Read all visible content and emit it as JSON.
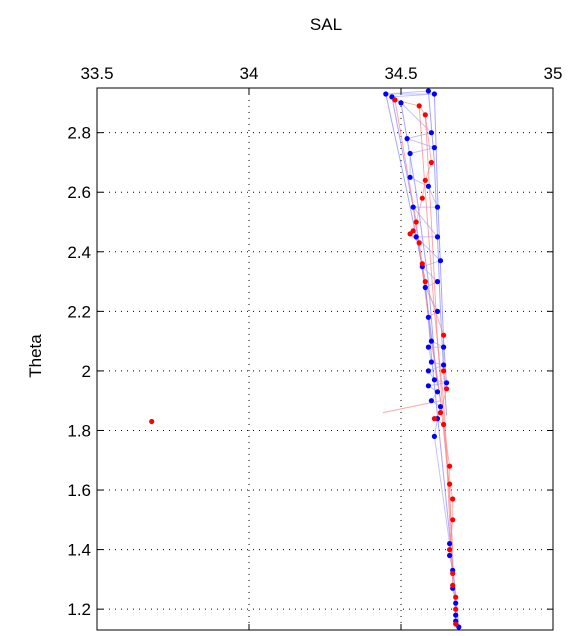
{
  "chart_data": {
    "type": "scatter",
    "title": "",
    "xlabel": "SAL",
    "ylabel": "Theta",
    "xlim": [
      33.5,
      35
    ],
    "ylim": [
      1.13,
      2.95
    ],
    "x_axis_position": "top",
    "xticks": [
      33.5,
      34,
      34.5,
      35
    ],
    "xtick_labels": [
      "33.5",
      "34",
      "34.5",
      "35"
    ],
    "yticks": [
      1.2,
      1.4,
      1.6,
      1.8,
      2.0,
      2.2,
      2.4,
      2.6,
      2.8
    ],
    "ytick_labels": [
      "1.2",
      "1.4",
      "1.6",
      "1.8",
      "2",
      "2.2",
      "2.4",
      "2.6",
      "2.8"
    ],
    "grid": true,
    "legend": "none",
    "series": [
      {
        "color": "#0000ff",
        "line_color": "#9999ff",
        "marker": "dot",
        "points": [
          [
            34.45,
            2.93
          ],
          [
            34.47,
            2.92
          ],
          [
            34.5,
            2.9
          ],
          [
            34.59,
            2.94
          ],
          [
            34.61,
            2.93
          ],
          [
            34.6,
            2.8
          ],
          [
            34.61,
            2.75
          ],
          [
            34.59,
            2.62
          ],
          [
            34.62,
            2.55
          ],
          [
            34.62,
            2.45
          ],
          [
            34.63,
            2.37
          ],
          [
            34.62,
            2.3
          ],
          [
            34.62,
            2.2
          ],
          [
            34.6,
            2.1
          ],
          [
            34.64,
            2.08
          ],
          [
            34.64,
            2.02
          ],
          [
            34.65,
            1.96
          ],
          [
            34.59,
            2.0
          ],
          [
            34.59,
            1.95
          ],
          [
            34.6,
            1.9
          ],
          [
            34.62,
            1.84
          ],
          [
            34.63,
            1.88
          ],
          [
            34.61,
            1.78
          ],
          [
            34.53,
            2.73
          ],
          [
            34.53,
            2.65
          ],
          [
            34.52,
            2.78
          ],
          [
            34.54,
            2.55
          ],
          [
            34.55,
            2.45
          ],
          [
            34.57,
            2.35
          ],
          [
            34.58,
            2.28
          ],
          [
            34.59,
            2.18
          ],
          [
            34.59,
            2.08
          ],
          [
            34.6,
            2.03
          ],
          [
            34.61,
            1.97
          ],
          [
            34.62,
            1.93
          ],
          [
            34.66,
            1.42
          ],
          [
            34.66,
            1.38
          ],
          [
            34.67,
            1.33
          ],
          [
            34.67,
            1.27
          ],
          [
            34.68,
            1.22
          ],
          [
            34.68,
            1.18
          ],
          [
            34.68,
            1.16
          ],
          [
            34.69,
            1.14
          ]
        ]
      },
      {
        "color": "#ff0000",
        "line_color": "#ff8080",
        "marker": "dot",
        "points": [
          [
            33.68,
            1.83
          ],
          [
            34.48,
            2.91
          ],
          [
            34.56,
            2.89
          ],
          [
            34.58,
            2.86
          ],
          [
            34.6,
            2.7
          ],
          [
            34.58,
            2.64
          ],
          [
            34.57,
            2.58
          ],
          [
            34.55,
            2.5
          ],
          [
            34.54,
            2.47
          ],
          [
            34.53,
            2.46
          ],
          [
            34.56,
            2.43
          ],
          [
            34.57,
            2.36
          ],
          [
            34.58,
            2.3
          ],
          [
            34.64,
            2.12
          ],
          [
            34.64,
            2.0
          ],
          [
            34.65,
            1.94
          ],
          [
            34.63,
            1.86
          ],
          [
            34.61,
            1.84
          ],
          [
            34.64,
            1.82
          ],
          [
            34.66,
            1.68
          ],
          [
            34.66,
            1.62
          ],
          [
            34.67,
            1.57
          ],
          [
            34.67,
            1.5
          ],
          [
            34.66,
            1.4
          ],
          [
            34.67,
            1.32
          ],
          [
            34.67,
            1.28
          ],
          [
            34.68,
            1.24
          ],
          [
            34.68,
            1.2
          ],
          [
            34.68,
            1.15
          ]
        ]
      }
    ],
    "profile_lines": [
      {
        "color": "#8080ff",
        "points": [
          [
            34.45,
            2.93
          ],
          [
            34.52,
            2.6
          ],
          [
            34.58,
            2.3
          ],
          [
            34.6,
            2.05
          ],
          [
            34.62,
            1.85
          ],
          [
            34.66,
            1.45
          ],
          [
            34.69,
            1.14
          ]
        ]
      },
      {
        "color": "#8080ff",
        "points": [
          [
            34.5,
            2.9
          ],
          [
            34.55,
            2.6
          ],
          [
            34.59,
            2.3
          ],
          [
            34.61,
            2.05
          ],
          [
            34.63,
            1.9
          ]
        ]
      },
      {
        "color": "#8080ff",
        "points": [
          [
            34.59,
            2.94
          ],
          [
            34.61,
            2.7
          ],
          [
            34.62,
            2.45
          ],
          [
            34.63,
            2.2
          ],
          [
            34.64,
            2.0
          ],
          [
            34.65,
            1.85
          ]
        ]
      },
      {
        "color": "#8080ff",
        "points": [
          [
            34.61,
            2.93
          ],
          [
            34.62,
            2.6
          ],
          [
            34.63,
            2.35
          ],
          [
            34.64,
            2.1
          ],
          [
            34.65,
            1.95
          ]
        ]
      },
      {
        "color": "#8080ff",
        "points": [
          [
            34.47,
            2.92
          ],
          [
            34.54,
            2.55
          ],
          [
            34.59,
            2.2
          ],
          [
            34.62,
            1.95
          ]
        ]
      },
      {
        "color": "#ff8080",
        "points": [
          [
            34.48,
            2.91
          ],
          [
            34.55,
            2.5
          ],
          [
            34.6,
            2.1
          ],
          [
            34.63,
            1.9
          ],
          [
            34.66,
            1.6
          ],
          [
            34.68,
            1.15
          ]
        ]
      },
      {
        "color": "#ff8080",
        "points": [
          [
            34.56,
            2.89
          ],
          [
            34.58,
            2.6
          ],
          [
            34.61,
            2.2
          ],
          [
            34.64,
            1.9
          ],
          [
            34.67,
            1.4
          ]
        ]
      },
      {
        "color": "#ff8080",
        "points": [
          [
            34.44,
            1.86
          ],
          [
            34.63,
            1.9
          ]
        ]
      },
      {
        "color": "#ff8080",
        "points": [
          [
            34.58,
            2.86
          ],
          [
            34.6,
            2.5
          ],
          [
            34.62,
            2.1
          ],
          [
            34.65,
            1.7
          ],
          [
            34.67,
            1.3
          ]
        ]
      }
    ]
  }
}
